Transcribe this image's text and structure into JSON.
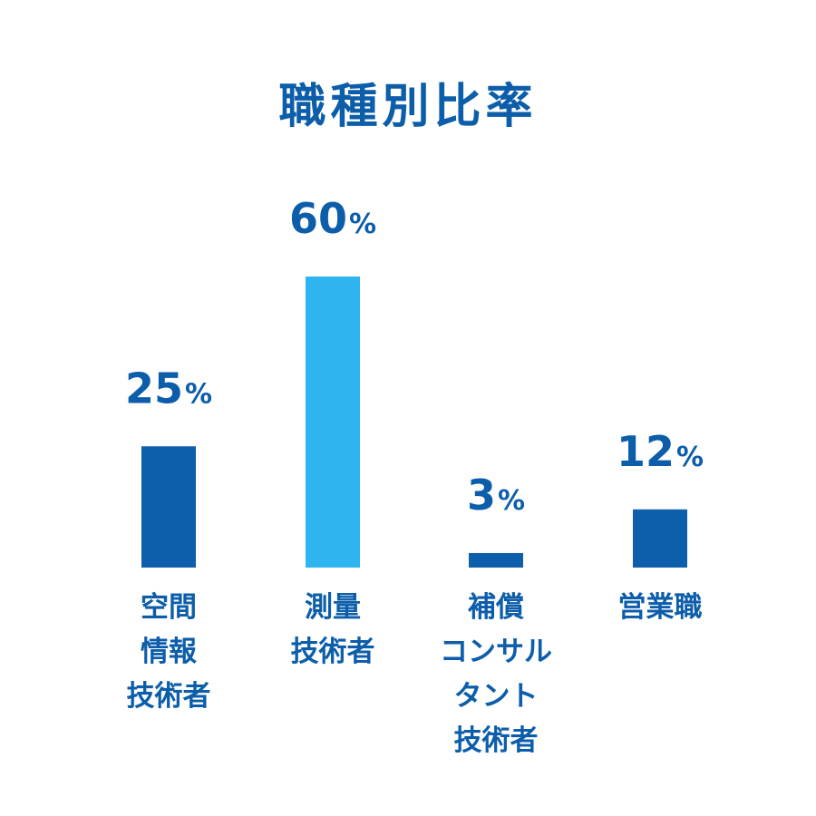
{
  "colors": {
    "text": "#0C5DAA",
    "bar_dark": "#0E5FAB",
    "bar_highlight": "#2EB5F0"
  },
  "chart_data": {
    "type": "bar",
    "title": "職種別比率",
    "categories": [
      [
        "空間",
        "情報",
        "技術者"
      ],
      [
        "測量",
        "技術者"
      ],
      [
        "補償",
        "コンサル",
        "タント",
        "技術者"
      ],
      [
        "営業職"
      ]
    ],
    "values": [
      25,
      60,
      3,
      12
    ],
    "value_labels": [
      {
        "num": "25",
        "unit": "%"
      },
      {
        "num": "60",
        "unit": "%"
      },
      {
        "num": "3",
        "unit": "%"
      },
      {
        "num": "12",
        "unit": "%"
      }
    ],
    "highlight_index": 1,
    "ylim": [
      0,
      60
    ],
    "grid": false,
    "legend": "none",
    "xlabel": "",
    "ylabel": ""
  }
}
